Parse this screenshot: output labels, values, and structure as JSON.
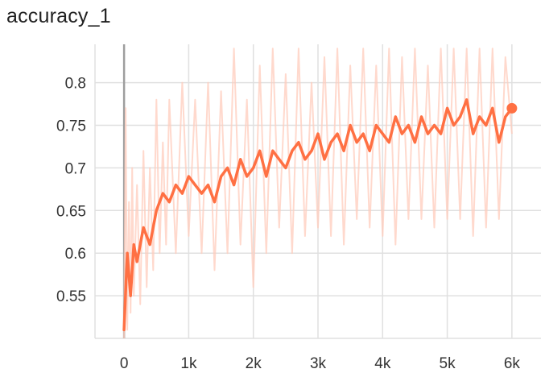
{
  "chart_data": {
    "type": "line",
    "title": "accuracy_1",
    "xlabel": "",
    "ylabel": "",
    "xlim": [
      -450,
      6450
    ],
    "ylim": [
      0.5,
      0.845
    ],
    "x_ticks": [
      0,
      1000,
      2000,
      3000,
      4000,
      5000,
      6000
    ],
    "x_tick_labels": [
      "0",
      "1k",
      "2k",
      "3k",
      "4k",
      "5k",
      "6k"
    ],
    "y_ticks": [
      0.55,
      0.6,
      0.65,
      0.7,
      0.75,
      0.8
    ],
    "y_tick_labels": [
      "0.55",
      "0.6",
      "0.65",
      "0.7",
      "0.75",
      "0.8"
    ],
    "grid": true,
    "colors": {
      "smoothed": "#ff7043",
      "raw": "#ffccbc",
      "zero_line": "#9e9e9e",
      "grid": "#e0e0e0"
    },
    "series": [
      {
        "role": "smoothed",
        "x": [
          0,
          50,
          100,
          150,
          200,
          300,
          400,
          500,
          600,
          700,
          800,
          900,
          1000,
          1100,
          1200,
          1300,
          1400,
          1500,
          1600,
          1700,
          1800,
          1900,
          2000,
          2100,
          2200,
          2300,
          2400,
          2500,
          2600,
          2700,
          2800,
          2900,
          3000,
          3100,
          3200,
          3300,
          3400,
          3500,
          3600,
          3700,
          3800,
          3900,
          4000,
          4100,
          4200,
          4300,
          4400,
          4500,
          4600,
          4700,
          4800,
          4900,
          5000,
          5100,
          5200,
          5300,
          5400,
          5500,
          5600,
          5700,
          5800,
          5900,
          6000
        ],
        "values": [
          0.51,
          0.6,
          0.55,
          0.61,
          0.59,
          0.63,
          0.61,
          0.65,
          0.67,
          0.66,
          0.68,
          0.67,
          0.69,
          0.68,
          0.67,
          0.68,
          0.66,
          0.69,
          0.7,
          0.68,
          0.71,
          0.69,
          0.7,
          0.72,
          0.69,
          0.72,
          0.71,
          0.7,
          0.72,
          0.73,
          0.71,
          0.72,
          0.74,
          0.71,
          0.73,
          0.74,
          0.72,
          0.75,
          0.73,
          0.74,
          0.72,
          0.75,
          0.74,
          0.73,
          0.76,
          0.74,
          0.75,
          0.73,
          0.76,
          0.74,
          0.75,
          0.74,
          0.77,
          0.75,
          0.76,
          0.78,
          0.74,
          0.76,
          0.75,
          0.77,
          0.73,
          0.76,
          0.77
        ]
      },
      {
        "role": "raw",
        "x": [
          0,
          25,
          50,
          75,
          100,
          125,
          150,
          200,
          250,
          300,
          350,
          400,
          450,
          500,
          550,
          600,
          650,
          700,
          800,
          900,
          1000,
          1100,
          1200,
          1300,
          1400,
          1500,
          1600,
          1700,
          1800,
          1900,
          2000,
          2100,
          2200,
          2300,
          2400,
          2500,
          2600,
          2700,
          2800,
          2900,
          3000,
          3100,
          3200,
          3300,
          3400,
          3500,
          3600,
          3700,
          3800,
          3900,
          4000,
          4100,
          4200,
          4300,
          4400,
          4500,
          4600,
          4700,
          4800,
          4900,
          5000,
          5100,
          5200,
          5300,
          5400,
          5500,
          5600,
          5700,
          5800,
          5900,
          6000
        ],
        "values": [
          0.5,
          0.77,
          0.51,
          0.66,
          0.53,
          0.7,
          0.55,
          0.68,
          0.54,
          0.72,
          0.56,
          0.7,
          0.58,
          0.78,
          0.6,
          0.73,
          0.61,
          0.78,
          0.6,
          0.8,
          0.62,
          0.78,
          0.6,
          0.8,
          0.58,
          0.79,
          0.6,
          0.84,
          0.61,
          0.78,
          0.56,
          0.82,
          0.6,
          0.84,
          0.63,
          0.81,
          0.6,
          0.84,
          0.62,
          0.8,
          0.63,
          0.83,
          0.62,
          0.84,
          0.61,
          0.82,
          0.64,
          0.84,
          0.63,
          0.82,
          0.62,
          0.84,
          0.61,
          0.83,
          0.64,
          0.84,
          0.64,
          0.82,
          0.63,
          0.84,
          0.64,
          0.84,
          0.64,
          0.84,
          0.62,
          0.84,
          0.63,
          0.84,
          0.64,
          0.83,
          0.74
        ]
      }
    ]
  }
}
